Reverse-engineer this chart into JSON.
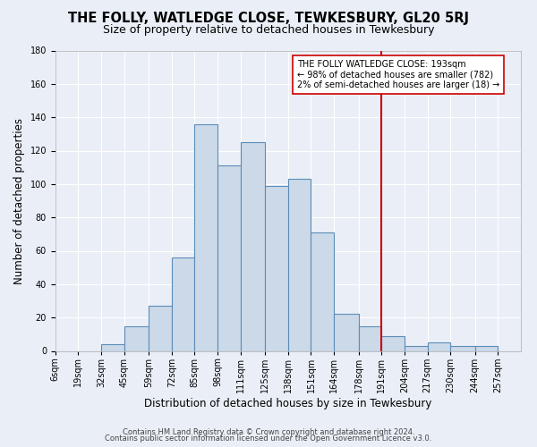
{
  "title": "THE FOLLY, WATLEDGE CLOSE, TEWKESBURY, GL20 5RJ",
  "subtitle": "Size of property relative to detached houses in Tewkesbury",
  "xlabel": "Distribution of detached houses by size in Tewkesbury",
  "ylabel": "Number of detached properties",
  "bin_edges": [
    6,
    19,
    32,
    45,
    59,
    72,
    85,
    98,
    111,
    125,
    138,
    151,
    164,
    178,
    191,
    204,
    217,
    230,
    244,
    257,
    270
  ],
  "bar_heights": [
    0,
    0,
    4,
    15,
    27,
    56,
    136,
    111,
    125,
    99,
    103,
    71,
    22,
    15,
    9,
    3,
    5,
    3,
    3,
    0
  ],
  "bar_facecolor": "#ccd9e8",
  "bar_edgecolor": "#5b8db8",
  "bar_linewidth": 0.8,
  "vline_x": 191,
  "vline_color": "#cc0000",
  "vline_linewidth": 1.5,
  "ylim": [
    0,
    180
  ],
  "yticks": [
    0,
    20,
    40,
    60,
    80,
    100,
    120,
    140,
    160,
    180
  ],
  "background_color": "#eaeff7",
  "plot_background_color": "#eaeff7",
  "grid_color": "#ffffff",
  "annotation_text": "THE FOLLY WATLEDGE CLOSE: 193sqm\n← 98% of detached houses are smaller (782)\n2% of semi-detached houses are larger (18) →",
  "annotation_box_edgecolor": "#cc0000",
  "annotation_box_facecolor": "#ffffff",
  "footer_line1": "Contains HM Land Registry data © Crown copyright and database right 2024.",
  "footer_line2": "Contains public sector information licensed under the Open Government Licence v3.0.",
  "title_fontsize": 10.5,
  "subtitle_fontsize": 9,
  "xlabel_fontsize": 8.5,
  "ylabel_fontsize": 8.5,
  "tick_fontsize": 7,
  "annotation_fontsize": 7,
  "footer_fontsize": 6
}
